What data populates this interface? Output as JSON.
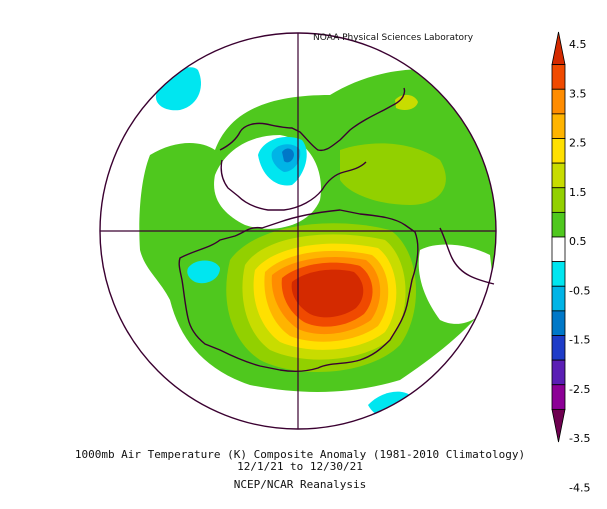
{
  "credit": "NOAA Physical Sciences Laboratory",
  "title_line1": "1000mb Air Temperature (K) Composite Anomaly (1981-2010 Climatology)",
  "title_line2": "12/1/21   to 12/30/21",
  "title_line3": "NCEP/NCAR Reanalysis",
  "legend": {
    "labels": [
      "4.5",
      "3.5",
      "2.5",
      "1.5",
      "0.5",
      "-0.5",
      "-1.5",
      "-2.5",
      "-3.5",
      "-4.5"
    ],
    "bins": [
      {
        "color": "#d42a00"
      },
      {
        "color": "#f04a00"
      },
      {
        "color": "#ff8c00"
      },
      {
        "color": "#ffb400"
      },
      {
        "color": "#ffe000"
      },
      {
        "color": "#c8dc00"
      },
      {
        "color": "#92d000"
      },
      {
        "color": "#4fc81e"
      },
      {
        "color": "#ffffff"
      },
      {
        "color": "#00e6f0"
      },
      {
        "color": "#00b4e6"
      },
      {
        "color": "#0078c8"
      },
      {
        "color": "#1e3cc8"
      },
      {
        "color": "#5a1eb4"
      },
      {
        "color": "#8c0096"
      },
      {
        "color": "#6e0050"
      }
    ]
  }
}
